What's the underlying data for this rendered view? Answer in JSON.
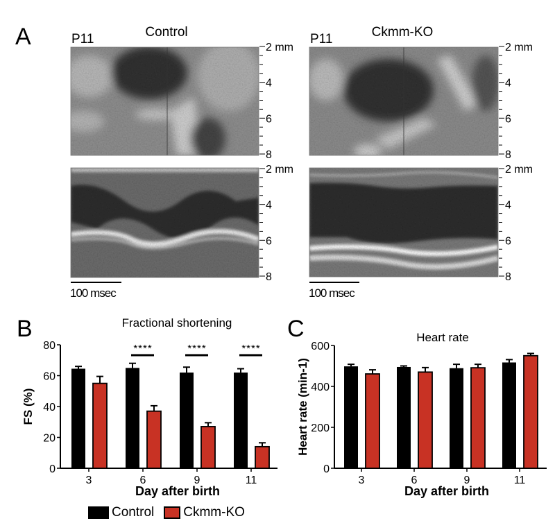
{
  "panels": {
    "A": {
      "letter": "A",
      "left": {
        "age_label": "P11",
        "title": "Control",
        "scale_bar_label": "100 msec"
      },
      "right": {
        "age_label": "P11",
        "title": "Ckmm-KO",
        "scale_bar_label": "100 msec"
      },
      "depth_ruler": {
        "labels": [
          "2 mm",
          "4",
          "6",
          "8"
        ]
      }
    },
    "B": {
      "letter": "B"
    },
    "C": {
      "letter": "C"
    }
  },
  "legend": {
    "items": [
      {
        "label": "Control",
        "color": "#000000"
      },
      {
        "label": "Ckmm-KO",
        "color": "#c83224"
      }
    ]
  },
  "colors": {
    "control": "#000000",
    "ko": "#c83224"
  },
  "chart_data": [
    {
      "type": "bar",
      "title": "Fractional shortening",
      "xlabel": "Day after birth",
      "ylabel": "FS (%)",
      "ylim": [
        0,
        80
      ],
      "yticks": [
        "0",
        "20",
        "40",
        "60",
        "80"
      ],
      "yticks_values": [
        0,
        20,
        40,
        60,
        80
      ],
      "categories": [
        "3",
        "6",
        "9",
        "11"
      ],
      "series": [
        {
          "name": "Control",
          "values": [
            64.5,
            65,
            62,
            62
          ],
          "errors": [
            1.5,
            3,
            3.5,
            2.5
          ]
        },
        {
          "name": "Ckmm-KO",
          "values": [
            55,
            37,
            27,
            14
          ],
          "errors": [
            4.5,
            3.5,
            2.5,
            2.5
          ]
        }
      ],
      "annotations": [
        {
          "category": "6",
          "text": "****"
        },
        {
          "category": "9",
          "text": "****"
        },
        {
          "category": "11",
          "text": "****"
        }
      ]
    },
    {
      "type": "bar",
      "title": "Heart rate",
      "xlabel": "Day after birth",
      "ylabel": "Heart rate (min-1)",
      "ylim": [
        0,
        600
      ],
      "yticks": [
        "0",
        "200",
        "400",
        "600"
      ],
      "yticks_values": [
        0,
        200,
        400,
        600
      ],
      "categories": [
        "3",
        "6",
        "9",
        "11"
      ],
      "series": [
        {
          "name": "Control",
          "values": [
            498,
            495,
            489,
            517
          ],
          "errors": [
            10,
            5,
            19,
            14
          ]
        },
        {
          "name": "Ckmm-KO",
          "values": [
            461,
            470,
            491,
            550
          ],
          "errors": [
            20,
            22,
            17,
            11
          ]
        }
      ],
      "annotations": []
    }
  ]
}
